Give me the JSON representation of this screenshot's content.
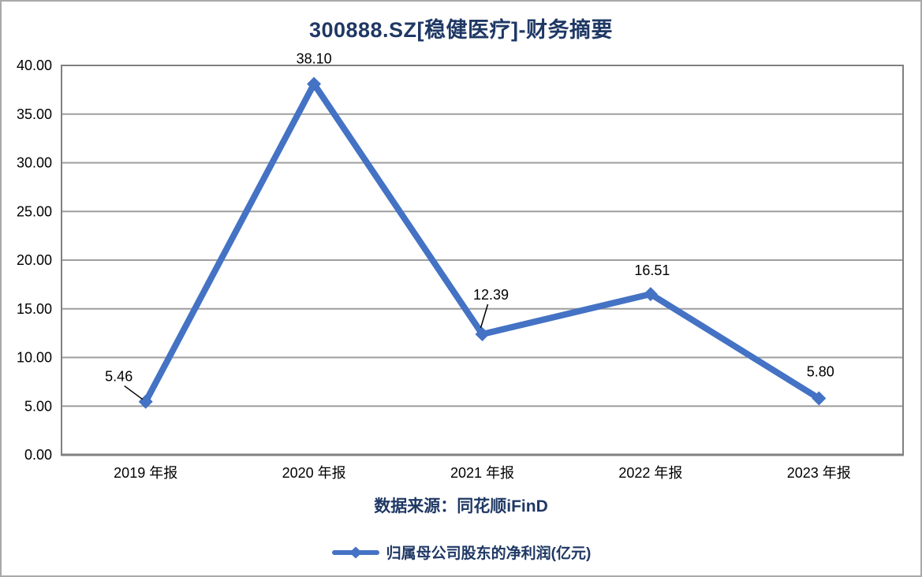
{
  "chart_data": {
    "type": "line",
    "title": "300888.SZ[稳健医疗]-财务摘要",
    "categories": [
      "2019 年报",
      "2020 年报",
      "2021 年报",
      "2022 年报",
      "2023 年报"
    ],
    "series": [
      {
        "name": "归属母公司股东的净利润(亿元)",
        "values": [
          5.46,
          38.1,
          12.39,
          16.51,
          5.8
        ]
      }
    ],
    "data_labels": [
      "5.46",
      "38.10",
      "12.39",
      "16.51",
      "5.80"
    ],
    "ylim": [
      0,
      40
    ],
    "ytick_step": 5,
    "ytick_labels": [
      "0.00",
      "5.00",
      "10.00",
      "15.00",
      "20.00",
      "25.00",
      "30.00",
      "35.00",
      "40.00"
    ],
    "grid": "horizontal",
    "legend_position": "bottom",
    "marker": "diamond",
    "source_note": "数据来源：同花顺iFinD",
    "colors": {
      "series": "#4472C4",
      "title_text": "#1F3864",
      "source_text": "#1F3864",
      "legend_text": "#1F3864",
      "axis_text": "#000000",
      "data_label_text": "#000000",
      "leader_line": "#000000",
      "gridline": "#9E9E9E",
      "plot_border": "#808080",
      "canvas_border": "#A9A9A9",
      "background": "#FFFFFF"
    }
  }
}
